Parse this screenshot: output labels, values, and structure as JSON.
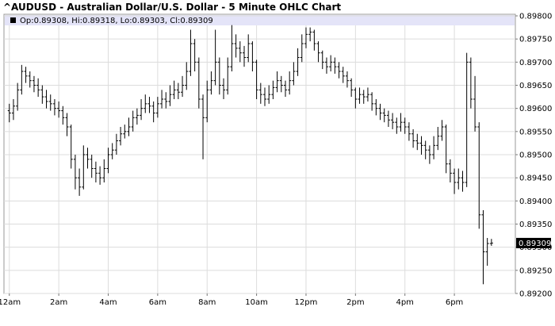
{
  "chart_data": {
    "type": "ohlc",
    "title": "^AUDUSD - Australian Dollar/U.S. Dollar - 5 Minute OHLC Chart",
    "legend_text": "Op:0.89308, Hi:0.89318, Lo:0.89303, Cl:0.89309",
    "color": "#000000",
    "grid": true,
    "xlim": [
      -13,
      1228
    ],
    "xticks": [
      {
        "value": 0,
        "label": "12am"
      },
      {
        "value": 120,
        "label": "2am"
      },
      {
        "value": 240,
        "label": "4am"
      },
      {
        "value": 360,
        "label": "6am"
      },
      {
        "value": 480,
        "label": "8am"
      },
      {
        "value": 600,
        "label": "10am"
      },
      {
        "value": 720,
        "label": "12pm"
      },
      {
        "value": 840,
        "label": "2pm"
      },
      {
        "value": 960,
        "label": "4pm"
      },
      {
        "value": 1080,
        "label": "6pm"
      }
    ],
    "ylim": [
      0.892,
      0.898
    ],
    "yticks": [
      {
        "value": 0.898,
        "label": "0.89800"
      },
      {
        "value": 0.8975,
        "label": "0.89750"
      },
      {
        "value": 0.897,
        "label": "0.89700"
      },
      {
        "value": 0.8965,
        "label": "0.89650"
      },
      {
        "value": 0.896,
        "label": "0.89600"
      },
      {
        "value": 0.8955,
        "label": "0.89550"
      },
      {
        "value": 0.895,
        "label": "0.89500"
      },
      {
        "value": 0.8945,
        "label": "0.89450"
      },
      {
        "value": 0.894,
        "label": "0.89400"
      },
      {
        "value": 0.8935,
        "label": "0.89350"
      },
      {
        "value": 0.893,
        "label": "0.89300"
      },
      {
        "value": 0.8925,
        "label": "0.89250"
      },
      {
        "value": 0.892,
        "label": "0.89200"
      }
    ],
    "x": [
      0,
      10,
      20,
      30,
      40,
      50,
      60,
      70,
      80,
      90,
      100,
      110,
      120,
      130,
      140,
      150,
      160,
      170,
      180,
      190,
      200,
      210,
      220,
      230,
      240,
      250,
      260,
      270,
      280,
      290,
      300,
      310,
      320,
      330,
      340,
      350,
      360,
      370,
      380,
      390,
      400,
      410,
      420,
      430,
      440,
      450,
      460,
      470,
      480,
      490,
      500,
      510,
      520,
      530,
      540,
      550,
      560,
      570,
      580,
      590,
      600,
      610,
      620,
      630,
      640,
      650,
      660,
      670,
      680,
      690,
      700,
      710,
      720,
      730,
      740,
      750,
      760,
      770,
      780,
      790,
      800,
      810,
      820,
      830,
      840,
      850,
      860,
      870,
      880,
      890,
      900,
      910,
      920,
      930,
      940,
      950,
      960,
      970,
      980,
      990,
      1000,
      1010,
      1020,
      1030,
      1040,
      1050,
      1060,
      1070,
      1080,
      1090,
      1100,
      1110,
      1120,
      1130,
      1140,
      1150,
      1160,
      1170
    ],
    "open": [
      0.89595,
      0.8959,
      0.89605,
      0.8964,
      0.8968,
      0.8967,
      0.8966,
      0.8965,
      0.8964,
      0.89625,
      0.89615,
      0.8961,
      0.896,
      0.89595,
      0.8958,
      0.8956,
      0.8949,
      0.8945,
      0.8943,
      0.895,
      0.8949,
      0.8947,
      0.8946,
      0.8945,
      0.8947,
      0.895,
      0.8951,
      0.8953,
      0.89545,
      0.8955,
      0.8956,
      0.8958,
      0.89585,
      0.896,
      0.8961,
      0.89605,
      0.8959,
      0.8961,
      0.8962,
      0.89615,
      0.8963,
      0.8964,
      0.89635,
      0.8965,
      0.8968,
      0.8974,
      0.897,
      0.8962,
      0.8958,
      0.8964,
      0.8966,
      0.897,
      0.8965,
      0.8964,
      0.8969,
      0.8974,
      0.8973,
      0.8972,
      0.8971,
      0.8974,
      0.897,
      0.8964,
      0.8963,
      0.8962,
      0.8963,
      0.89645,
      0.8966,
      0.8965,
      0.8964,
      0.8966,
      0.8968,
      0.8971,
      0.8974,
      0.8976,
      0.89765,
      0.8974,
      0.8972,
      0.897,
      0.8969,
      0.897,
      0.8969,
      0.8968,
      0.8967,
      0.8966,
      0.8964,
      0.8962,
      0.8963,
      0.89625,
      0.8963,
      0.8961,
      0.896,
      0.8959,
      0.89585,
      0.89575,
      0.8957,
      0.8956,
      0.8957,
      0.8956,
      0.89545,
      0.8953,
      0.89525,
      0.8952,
      0.8951,
      0.895,
      0.8952,
      0.8954,
      0.8956,
      0.8948,
      0.8946,
      0.8944,
      0.8945,
      0.8944,
      0.897,
      0.8962,
      0.8956,
      0.8937,
      0.8929,
      0.89308
    ],
    "high": [
      0.8961,
      0.8962,
      0.89655,
      0.89694,
      0.8969,
      0.8968,
      0.8967,
      0.89665,
      0.8965,
      0.8964,
      0.8963,
      0.8962,
      0.89615,
      0.89605,
      0.8959,
      0.89565,
      0.895,
      0.8947,
      0.8952,
      0.89515,
      0.895,
      0.89485,
      0.89475,
      0.8949,
      0.89515,
      0.89525,
      0.89545,
      0.8956,
      0.89565,
      0.8958,
      0.89595,
      0.896,
      0.8962,
      0.8963,
      0.89625,
      0.89615,
      0.89625,
      0.8964,
      0.89635,
      0.8965,
      0.8966,
      0.89655,
      0.8967,
      0.897,
      0.8977,
      0.8975,
      0.8971,
      0.8963,
      0.8966,
      0.8968,
      0.8977,
      0.8971,
      0.89665,
      0.8971,
      0.8978,
      0.8976,
      0.89745,
      0.89735,
      0.8976,
      0.89745,
      0.89705,
      0.89655,
      0.89645,
      0.8965,
      0.8966,
      0.8968,
      0.8967,
      0.8966,
      0.8968,
      0.897,
      0.8973,
      0.8976,
      0.89775,
      0.89775,
      0.8977,
      0.89745,
      0.89725,
      0.8971,
      0.89715,
      0.8971,
      0.897,
      0.8969,
      0.8968,
      0.89665,
      0.89645,
      0.89645,
      0.8964,
      0.89645,
      0.89635,
      0.8962,
      0.8961,
      0.896,
      0.89595,
      0.8959,
      0.8958,
      0.8959,
      0.8958,
      0.8957,
      0.89555,
      0.89545,
      0.8954,
      0.8953,
      0.8952,
      0.8954,
      0.8956,
      0.89575,
      0.89565,
      0.8949,
      0.8947,
      0.8947,
      0.89465,
      0.8972,
      0.8971,
      0.8967,
      0.8957,
      0.8938,
      0.8932,
      0.89318
    ],
    "low": [
      0.8957,
      0.89575,
      0.89595,
      0.8963,
      0.89655,
      0.89645,
      0.89635,
      0.89625,
      0.8961,
      0.896,
      0.89595,
      0.89585,
      0.8958,
      0.89565,
      0.8954,
      0.8947,
      0.89425,
      0.89411,
      0.89425,
      0.8947,
      0.8945,
      0.8944,
      0.89435,
      0.8944,
      0.8946,
      0.8949,
      0.895,
      0.8952,
      0.89535,
      0.8954,
      0.8955,
      0.89565,
      0.89575,
      0.8959,
      0.8959,
      0.8957,
      0.8958,
      0.896,
      0.896,
      0.89605,
      0.8962,
      0.8962,
      0.89625,
      0.8964,
      0.8967,
      0.8968,
      0.896,
      0.8949,
      0.8957,
      0.8963,
      0.8965,
      0.8963,
      0.8962,
      0.8963,
      0.8968,
      0.8971,
      0.897,
      0.8969,
      0.897,
      0.8968,
      0.8962,
      0.8961,
      0.89605,
      0.8961,
      0.8962,
      0.89635,
      0.89635,
      0.89625,
      0.8963,
      0.8965,
      0.8967,
      0.897,
      0.8973,
      0.89745,
      0.89725,
      0.897,
      0.89685,
      0.89675,
      0.8968,
      0.89675,
      0.89665,
      0.89655,
      0.89645,
      0.89625,
      0.896,
      0.8961,
      0.8961,
      0.89615,
      0.89595,
      0.89585,
      0.89575,
      0.8957,
      0.8956,
      0.89555,
      0.89545,
      0.8955,
      0.89545,
      0.8953,
      0.89515,
      0.8951,
      0.895,
      0.8949,
      0.8948,
      0.8949,
      0.8951,
      0.8953,
      0.8946,
      0.8944,
      0.89415,
      0.89425,
      0.8942,
      0.8943,
      0.896,
      0.8955,
      0.8934,
      0.8922,
      0.8926,
      0.89303
    ],
    "close": [
      0.8959,
      0.89605,
      0.8964,
      0.8968,
      0.8967,
      0.8966,
      0.8965,
      0.8964,
      0.89625,
      0.89615,
      0.8961,
      0.896,
      0.89595,
      0.8958,
      0.8956,
      0.8949,
      0.8945,
      0.8943,
      0.895,
      0.8949,
      0.8947,
      0.8946,
      0.8945,
      0.8947,
      0.895,
      0.8951,
      0.8953,
      0.89545,
      0.8955,
      0.8956,
      0.8958,
      0.89585,
      0.896,
      0.8961,
      0.89605,
      0.8959,
      0.8961,
      0.8962,
      0.89615,
      0.8963,
      0.8964,
      0.89635,
      0.8965,
      0.8968,
      0.8974,
      0.897,
      0.8962,
      0.8958,
      0.8964,
      0.8966,
      0.897,
      0.8965,
      0.8964,
      0.8969,
      0.8974,
      0.8973,
      0.8972,
      0.8971,
      0.8974,
      0.897,
      0.8964,
      0.8963,
      0.8962,
      0.8963,
      0.89645,
      0.8966,
      0.8965,
      0.8964,
      0.8966,
      0.8968,
      0.8971,
      0.8974,
      0.8976,
      0.89765,
      0.8974,
      0.8972,
      0.897,
      0.8969,
      0.897,
      0.8969,
      0.8968,
      0.8967,
      0.8966,
      0.8964,
      0.8962,
      0.8963,
      0.89625,
      0.8963,
      0.8961,
      0.896,
      0.8959,
      0.89585,
      0.89575,
      0.8957,
      0.8956,
      0.8957,
      0.8956,
      0.89545,
      0.8953,
      0.89525,
      0.8952,
      0.8951,
      0.895,
      0.8952,
      0.8954,
      0.8956,
      0.8948,
      0.8946,
      0.8944,
      0.8945,
      0.8944,
      0.897,
      0.8962,
      0.8956,
      0.8937,
      0.8929,
      0.89308,
      0.89309
    ]
  }
}
